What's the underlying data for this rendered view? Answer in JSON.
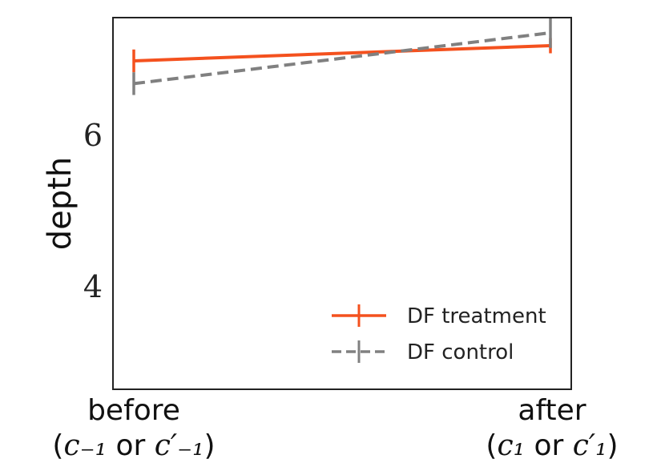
{
  "chart_data": {
    "type": "line",
    "ylabel": "depth",
    "ylim": [
      2.65,
      7.55
    ],
    "yticks": [
      {
        "value": 4,
        "label": "4"
      },
      {
        "value": 6,
        "label": "6"
      }
    ],
    "categories": [
      {
        "label": "before",
        "sub_open": "(",
        "sub_math": "c₋₁",
        "sub_mid": " or ",
        "sub_math2": "c′₋₁",
        "sub_close": ")"
      },
      {
        "label": "after",
        "sub_open": "(",
        "sub_math": "c₁",
        "sub_mid": " or ",
        "sub_math2": "c′₁",
        "sub_close": ")"
      }
    ],
    "series": [
      {
        "name": "DF treatment",
        "values": [
          6.98,
          7.18
        ],
        "err": [
          0.15,
          0.1
        ],
        "color": "#f4511e",
        "dashed": false
      },
      {
        "name": "DF control",
        "values": [
          6.68,
          7.35
        ],
        "err": [
          0.15,
          0.2
        ],
        "color": "#808080",
        "dashed": true
      }
    ],
    "legend_position": "lower-right",
    "grid": false
  }
}
